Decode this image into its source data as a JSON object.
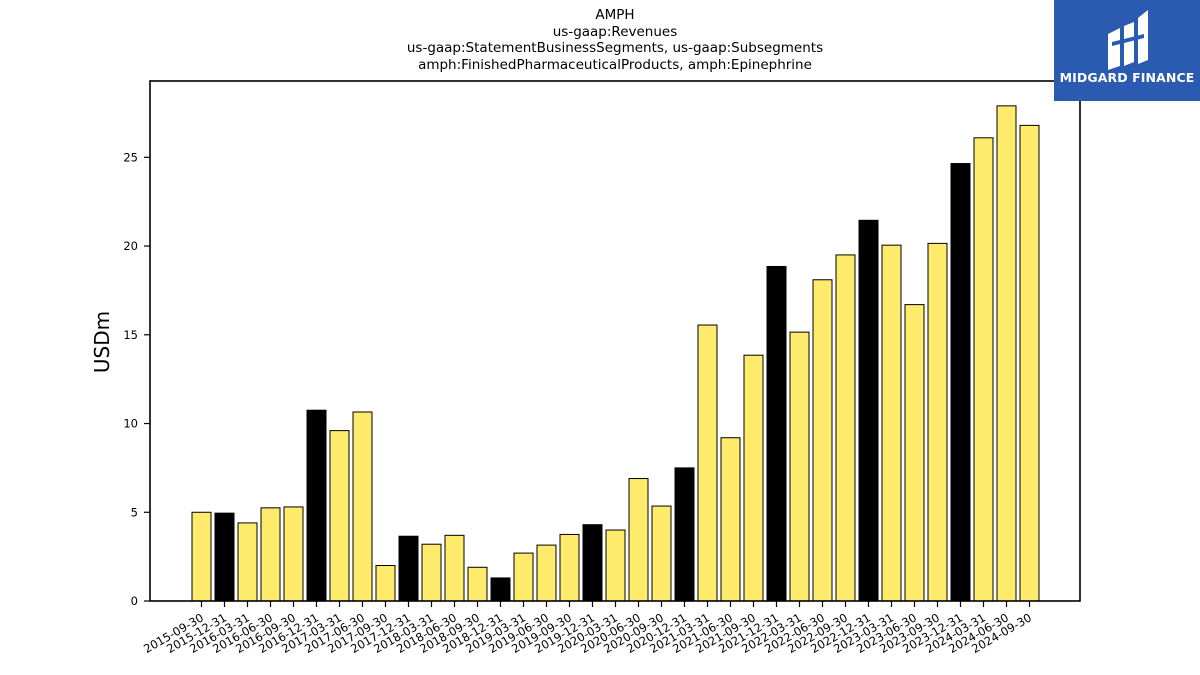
{
  "titles": {
    "line1": "AMPH",
    "line2": "us-gaap:Revenues",
    "line3": "us-gaap:StatementBusinessSegments, us-gaap:Subsegments",
    "line4": "amph:FinishedPharmaceuticalProducts, amph:Epinephrine"
  },
  "logo": {
    "text": "MIDGARD FINANCE",
    "icon": "midgard-logo-icon",
    "background": "#2b5bb0"
  },
  "chart_data": {
    "type": "bar",
    "title": "AMPH",
    "ylabel": "USDm",
    "xlabel": "",
    "ylim": [
      0,
      29.3
    ],
    "yticks": [
      0,
      5,
      10,
      15,
      20,
      25
    ],
    "grid": false,
    "colors": {
      "default": "#ffeb6b",
      "highlight": "#000000",
      "edge": "#000000"
    },
    "categories": [
      "2015-09-30",
      "2015-12-31",
      "2016-03-31",
      "2016-06-30",
      "2016-09-30",
      "2016-12-31",
      "2017-03-31",
      "2017-06-30",
      "2017-09-30",
      "2017-12-31",
      "2018-03-31",
      "2018-06-30",
      "2018-09-30",
      "2018-12-31",
      "2019-03-31",
      "2019-06-30",
      "2019-09-30",
      "2019-12-31",
      "2020-03-31",
      "2020-06-30",
      "2020-09-30",
      "2020-12-31",
      "2021-03-31",
      "2021-06-30",
      "2021-09-30",
      "2021-12-31",
      "2022-03-31",
      "2022-06-30",
      "2022-09-30",
      "2022-12-31",
      "2023-03-31",
      "2023-06-30",
      "2023-09-30",
      "2023-12-31",
      "2024-03-31",
      "2024-06-30",
      "2024-09-30"
    ],
    "values": [
      5.0,
      4.95,
      4.4,
      5.25,
      5.3,
      10.75,
      9.6,
      10.65,
      2.0,
      3.65,
      3.2,
      3.7,
      1.9,
      1.3,
      2.7,
      3.15,
      3.75,
      4.3,
      4.0,
      6.9,
      5.35,
      7.5,
      15.55,
      9.2,
      13.85,
      18.85,
      15.15,
      18.1,
      19.5,
      21.45,
      20.05,
      16.7,
      20.15,
      24.65,
      26.1,
      27.9,
      26.8
    ],
    "highlight": [
      false,
      true,
      false,
      false,
      false,
      true,
      false,
      false,
      false,
      true,
      false,
      false,
      false,
      true,
      false,
      false,
      false,
      true,
      false,
      false,
      false,
      true,
      false,
      false,
      false,
      true,
      false,
      false,
      false,
      true,
      false,
      false,
      false,
      true,
      false,
      false,
      false
    ]
  }
}
